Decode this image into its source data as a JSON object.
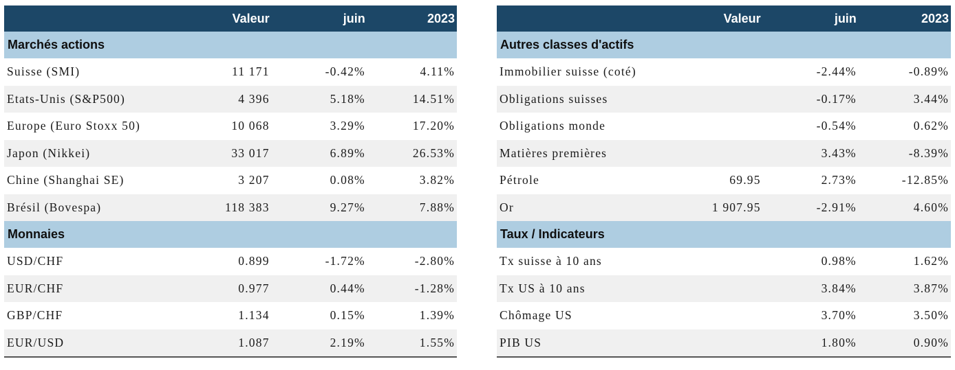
{
  "left": {
    "header": {
      "name": "",
      "valeur": "Valeur",
      "juin": "juin",
      "ytd": "2023"
    },
    "sections": [
      {
        "title": "Marchés actions",
        "rows": [
          {
            "name": "Suisse (SMI)",
            "valeur": "11 171",
            "juin": "-0.42%",
            "ytd": "4.11%"
          },
          {
            "name": "Etats-Unis (S&P500)",
            "valeur": "4 396",
            "juin": "5.18%",
            "ytd": "14.51%"
          },
          {
            "name": "Europe (Euro Stoxx 50)",
            "valeur": "10 068",
            "juin": "3.29%",
            "ytd": "17.20%"
          },
          {
            "name": "Japon (Nikkei)",
            "valeur": "33 017",
            "juin": "6.89%",
            "ytd": "26.53%"
          },
          {
            "name": "Chine (Shanghai SE)",
            "valeur": "3 207",
            "juin": "0.08%",
            "ytd": "3.82%"
          },
          {
            "name": "Brésil (Bovespa)",
            "valeur": "118 383",
            "juin": "9.27%",
            "ytd": "7.88%"
          }
        ]
      },
      {
        "title": "Monnaies",
        "rows": [
          {
            "name": "USD/CHF",
            "valeur": "0.899",
            "juin": "-1.72%",
            "ytd": "-2.80%"
          },
          {
            "name": "EUR/CHF",
            "valeur": "0.977",
            "juin": "0.44%",
            "ytd": "-1.28%"
          },
          {
            "name": "GBP/CHF",
            "valeur": "1.134",
            "juin": "0.15%",
            "ytd": "1.39%"
          },
          {
            "name": "EUR/USD",
            "valeur": "1.087",
            "juin": "2.19%",
            "ytd": "1.55%"
          }
        ]
      }
    ]
  },
  "right": {
    "header": {
      "name": "",
      "valeur": "Valeur",
      "juin": "juin",
      "ytd": "2023"
    },
    "sections": [
      {
        "title": "Autres classes d'actifs",
        "rows": [
          {
            "name": "Immobilier suisse (coté)",
            "valeur": "",
            "juin": "-2.44%",
            "ytd": "-0.89%"
          },
          {
            "name": "Obligations suisses",
            "valeur": "",
            "juin": "-0.17%",
            "ytd": "3.44%"
          },
          {
            "name": "Obligations monde",
            "valeur": "",
            "juin": "-0.54%",
            "ytd": "0.62%"
          },
          {
            "name": "Matières premières",
            "valeur": "",
            "juin": "3.43%",
            "ytd": "-8.39%"
          },
          {
            "name": "Pétrole",
            "valeur": "69.95",
            "juin": "2.73%",
            "ytd": "-12.85%"
          },
          {
            "name": "Or",
            "valeur": "1 907.95",
            "juin": "-2.91%",
            "ytd": "4.60%"
          }
        ]
      },
      {
        "title": "Taux / Indicateurs",
        "rows": [
          {
            "name": "Tx suisse à 10 ans",
            "valeur": "",
            "juin": "0.98%",
            "ytd": "1.62%"
          },
          {
            "name": "Tx US à 10 ans",
            "valeur": "",
            "juin": "3.84%",
            "ytd": "3.87%"
          },
          {
            "name": "Chômage US",
            "valeur": "",
            "juin": "3.70%",
            "ytd": "3.50%"
          },
          {
            "name": "PIB US",
            "valeur": "",
            "juin": "1.80%",
            "ytd": "0.90%"
          }
        ]
      }
    ]
  }
}
